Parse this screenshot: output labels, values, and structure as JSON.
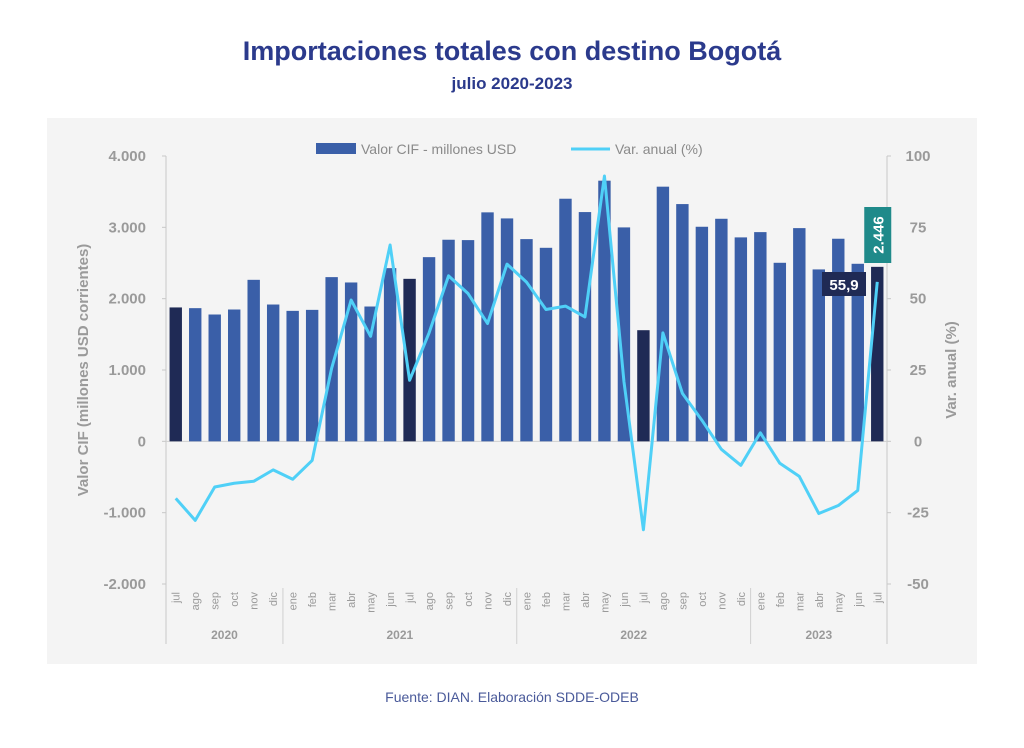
{
  "title": "Importaciones totales con destino Bogotá",
  "subtitle": "julio 2020-2023",
  "source": "Fuente: DIAN. Elaboración SDDE-ODEB",
  "colors": {
    "bar": "#3a5fa8",
    "bar_highlight": "#1f2a55",
    "line": "#4fd0f7",
    "label_bar": "#1f8a8a",
    "label_line": "#1f2a55"
  },
  "chart_data": {
    "type": "bar+line",
    "title": "Importaciones totales con destino Bogotá",
    "legend": [
      "Valor CIF - millones USD",
      "Var. anual (%)"
    ],
    "legend_position": "top-center",
    "ylabel": "Valor CIF (millones USD corrientes)",
    "y2label": "Var. anual (%)",
    "ylim": [
      -2000,
      4000
    ],
    "y2lim": [
      -50,
      100
    ],
    "yticks": [
      "4.000",
      "3.000",
      "2.000",
      "1.000",
      "0",
      "-1.000",
      "-2.000"
    ],
    "y2ticks": [
      "100",
      "75",
      "50",
      "25",
      "0",
      "-25",
      "-50"
    ],
    "months": [
      "jul",
      "ago",
      "sep",
      "oct",
      "nov",
      "dic",
      "ene",
      "feb",
      "mar",
      "abr",
      "may",
      "jun",
      "jul",
      "ago",
      "sep",
      "oct",
      "nov",
      "dic",
      "ene",
      "feb",
      "mar",
      "abr",
      "may",
      "jun",
      "jul",
      "ago",
      "sep",
      "oct",
      "nov",
      "dic",
      "ene",
      "feb",
      "mar",
      "abr",
      "may",
      "jun",
      "jul"
    ],
    "years": [
      {
        "label": "2020",
        "count": 6
      },
      {
        "label": "2021",
        "count": 12
      },
      {
        "label": "2022",
        "count": 12
      },
      {
        "label": "2023",
        "count": 7
      }
    ],
    "highlight": [
      0,
      12,
      24,
      36
    ],
    "series": [
      {
        "name": "Valor CIF - millones USD",
        "type": "bar",
        "values": [
          1877,
          1867,
          1778,
          1848,
          2264,
          1918,
          1829,
          1843,
          2302,
          2227,
          1890,
          2428,
          2278,
          2582,
          2826,
          2821,
          3210,
          3125,
          2835,
          2713,
          3401,
          3214,
          3654,
          2999,
          1558,
          3570,
          3326,
          3008,
          3120,
          2859,
          2933,
          2503,
          2989,
          2410,
          2840,
          2489,
          2446
        ]
      },
      {
        "name": "Var. anual (%)",
        "type": "line",
        "values": [
          -20,
          -27.7,
          -16,
          -14.7,
          -14,
          -10,
          -13.3,
          -6.7,
          25.6,
          49.5,
          36.8,
          68.8,
          21.4,
          38,
          58,
          51.8,
          41.3,
          62.1,
          55.8,
          46.2,
          47.4,
          43.6,
          93,
          21,
          -31,
          38,
          16.8,
          7.4,
          -2.8,
          -8.4,
          3,
          -7.7,
          -12.3,
          -25.3,
          -22.5,
          -17.2,
          55.9
        ]
      }
    ],
    "annotations": {
      "last_bar": "2.446",
      "last_line": "55,9"
    }
  }
}
